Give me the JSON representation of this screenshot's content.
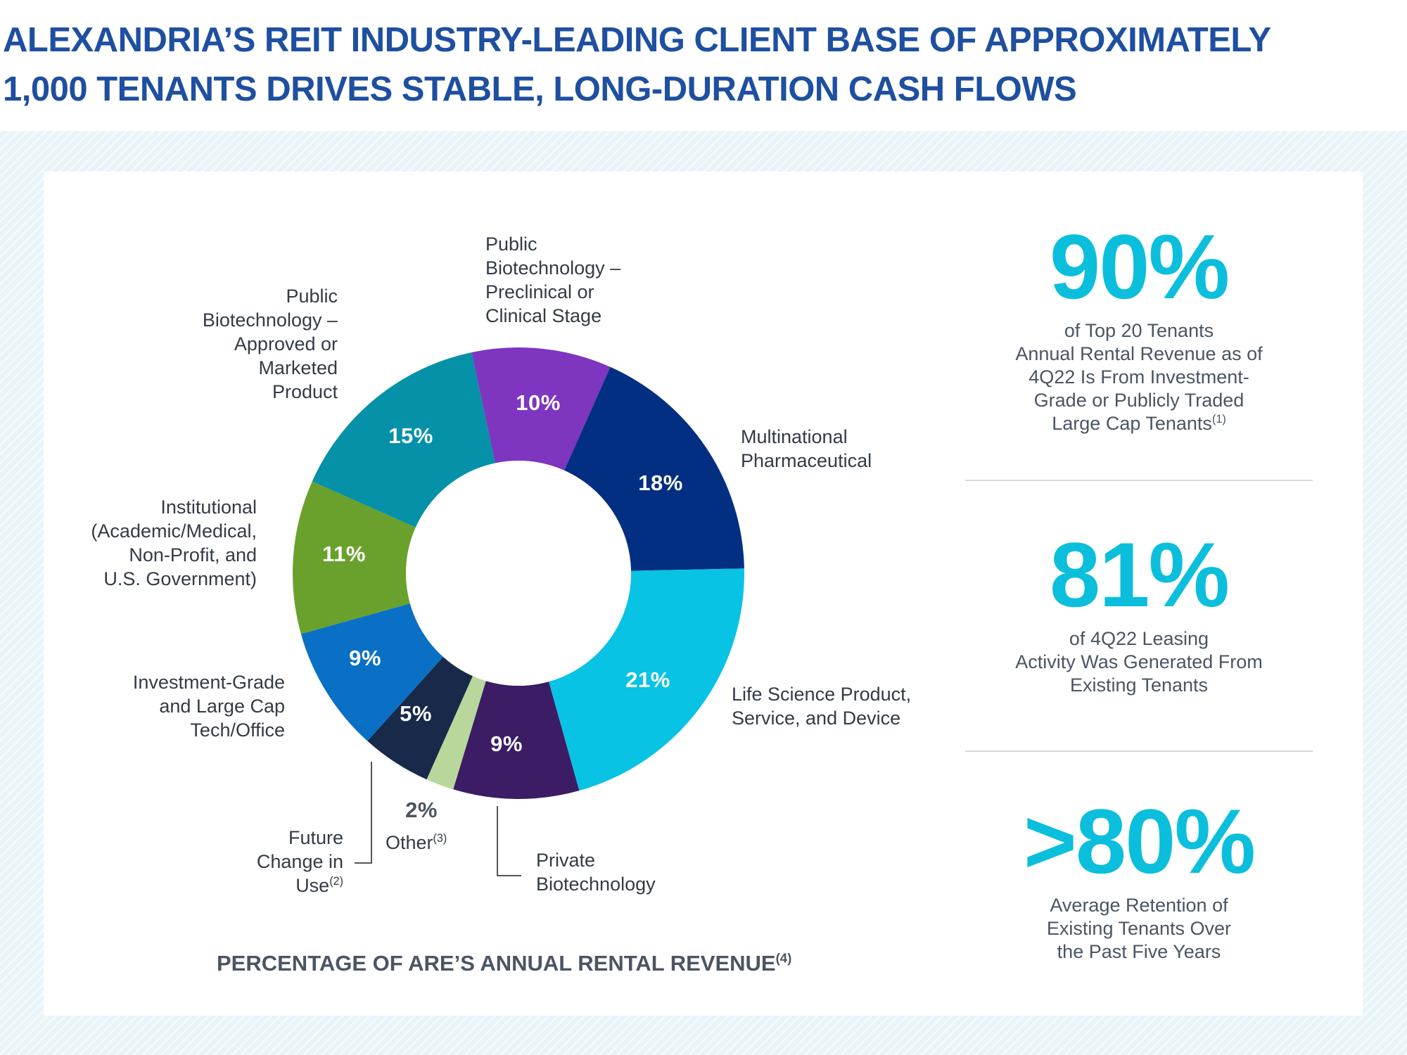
{
  "header": {
    "title_line1": "ALEXANDRIA’S REIT INDUSTRY-LEADING CLIENT BASE OF APPROXIMATELY",
    "title_line2": "1,000 TENANTS DRIVES STABLE, LONG-DURATION CASH FLOWS"
  },
  "colors": {
    "title": "#1e4fa0",
    "accent_stat": "#0bbfdc"
  },
  "chart_data": {
    "type": "pie",
    "variant": "donut",
    "title": "PERCENTAGE OF ARE’S ANNUAL RENTAL REVENUE",
    "title_footnote": "(4)",
    "categories": [
      "Public Biotechnology – Preclinical or Clinical Stage",
      "Multinational Pharmaceutical",
      "Life Science Product, Service, and Device",
      "Private Biotechnology",
      "Other",
      "Future Change in Use",
      "Investment-Grade and Large Cap Tech/Office",
      "Institutional (Academic/Medical, Non-Profit, and U.S. Government)",
      "Public Biotechnology – Approved or Marketed Product"
    ],
    "values": [
      10,
      18,
      21,
      9,
      2,
      5,
      9,
      11,
      15
    ],
    "value_labels": [
      "10%",
      "18%",
      "21%",
      "9%",
      "2%",
      "5%",
      "9%",
      "11%",
      "15%"
    ],
    "colors": [
      "#7e35c0",
      "#022f82",
      "#08c3e3",
      "#3b1c65",
      "#b9d79a",
      "#18294a",
      "#0a70c5",
      "#6aa12c",
      "#0591a7"
    ]
  },
  "labels": {
    "preclinical": [
      "Public",
      "Biotechnology –",
      "Preclinical or",
      "Clinical Stage"
    ],
    "multinational": [
      "Multinational",
      "Pharmaceutical"
    ],
    "life_science": [
      "Life Science Product,",
      "Service, and Device"
    ],
    "private_biotech": [
      "Private",
      "Biotechnology"
    ],
    "other": "Other",
    "other_fn": "(3)",
    "future_change": [
      "Future",
      "Change in",
      "Use"
    ],
    "future_change_fn": "(2)",
    "investment_grade": [
      "Investment-Grade",
      "and Large Cap",
      "Tech/Office"
    ],
    "institutional": [
      "Institutional",
      "(Academic/Medical,",
      "Non-Profit, and",
      "U.S. Government)"
    ],
    "approved": [
      "Public",
      "Biotechnology –",
      "Approved or",
      "Marketed",
      "Product"
    ]
  },
  "stats": [
    {
      "value": "90%",
      "lines": [
        "of Top 20 Tenants",
        "Annual Rental Revenue as of",
        "4Q22 Is From Investment-",
        "Grade or Publicly Traded",
        "Large Cap Tenants"
      ],
      "footnote": "(1)"
    },
    {
      "value": "81%",
      "lines": [
        "of 4Q22 Leasing",
        "Activity Was Generated From",
        "Existing Tenants"
      ]
    },
    {
      "value": ">80%",
      "lines": [
        "Average Retention of",
        "Existing Tenants Over",
        "the Past Five Years"
      ]
    }
  ]
}
